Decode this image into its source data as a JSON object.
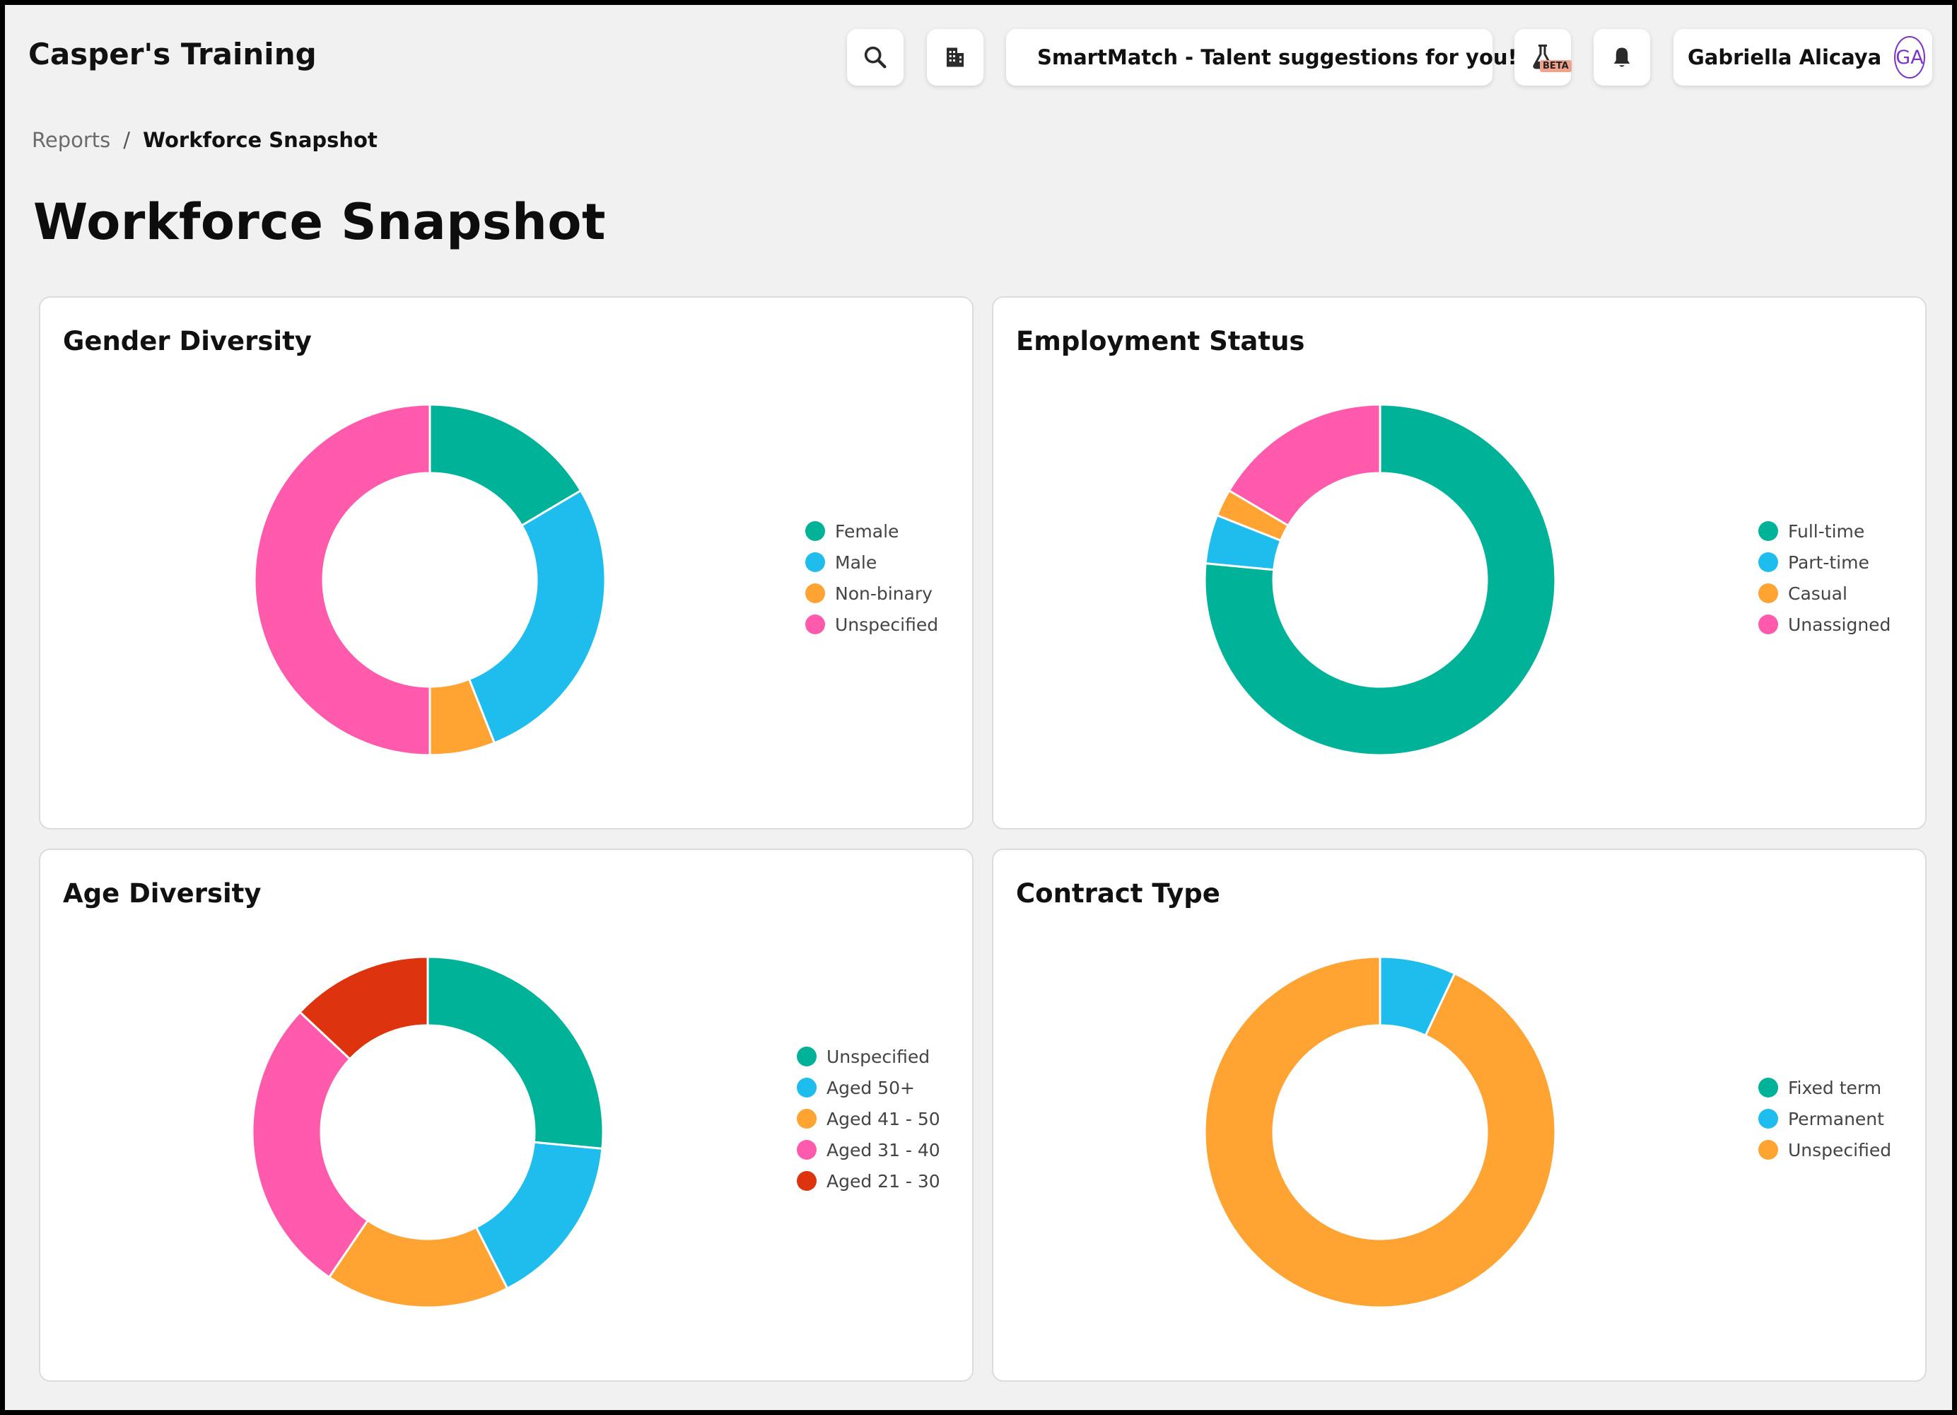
{
  "header": {
    "app_title": "Casper's Training",
    "smartmatch_label": "SmartMatch - Talent suggestions for you!",
    "beta_badge": "BETA",
    "user_name": "Gabriella Alicaya",
    "user_initials": "GA",
    "icons": [
      "search-icon",
      "building-icon",
      "sparkle-icon",
      "flask-icon",
      "bell-icon"
    ]
  },
  "breadcrumb": {
    "parent": "Reports",
    "separator": "/",
    "current": "Workforce Snapshot"
  },
  "page_title": "Workforce Snapshot",
  "colors": {
    "green": "#00b398",
    "blue": "#1ebdee",
    "orange": "#ffa333",
    "pink": "#ff5aab",
    "red": "#dd330f",
    "avatar_accent": "#7b35c9"
  },
  "chart_data": [
    {
      "type": "pie",
      "title": "Gender Diversity",
      "categories": [
        "Female",
        "Male",
        "Non-binary",
        "Unspecified"
      ],
      "values": [
        16.5,
        27.5,
        6,
        50
      ],
      "colors": [
        "#00b398",
        "#1ebdee",
        "#ffa333",
        "#ff5aab"
      ],
      "legend": "right"
    },
    {
      "type": "pie",
      "title": "Employment Status",
      "categories": [
        "Full-time",
        "Part-time",
        "Casual",
        "Unassigned"
      ],
      "values": [
        76.5,
        4.5,
        2.5,
        16.5
      ],
      "colors": [
        "#00b398",
        "#1ebdee",
        "#ffa333",
        "#ff5aab"
      ],
      "legend": "right"
    },
    {
      "type": "pie",
      "title": "Age Diversity",
      "categories": [
        "Unspecified",
        "Aged 50+",
        "Aged 41 - 50",
        "Aged 31 - 40",
        "Aged 21 - 30"
      ],
      "values": [
        26.5,
        16,
        17,
        27.5,
        13
      ],
      "colors": [
        "#00b398",
        "#1ebdee",
        "#ffa333",
        "#ff5aab",
        "#dd330f"
      ],
      "legend": "right"
    },
    {
      "type": "pie",
      "title": "Contract Type",
      "categories": [
        "Fixed term",
        "Permanent",
        "Unspecified"
      ],
      "values": [
        0,
        7,
        93
      ],
      "colors": [
        "#00b398",
        "#1ebdee",
        "#ffa333"
      ],
      "legend": "right"
    }
  ]
}
